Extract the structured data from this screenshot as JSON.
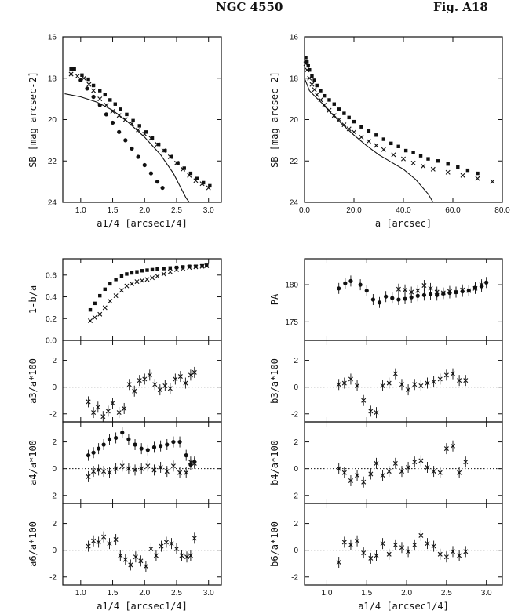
{
  "title": "NGC 4550",
  "figure_label": "Fig. A18",
  "chart_data": [
    {
      "id": "sb_vs_a14",
      "type": "scatter",
      "xlabel": "a1/4 [arcsec1/4]",
      "ylabel": "SB [mag arcsec-2]",
      "xlim": [
        0.72,
        3.2
      ],
      "ylim": [
        24,
        16
      ],
      "ytick_labels": [
        "16",
        "18",
        "20",
        "22",
        "24"
      ],
      "xtick_labels": [
        "1.0",
        "1.5",
        "2.0",
        "2.5",
        "3.0"
      ],
      "series": [
        {
          "marker": "square",
          "x": [
            0.85,
            0.9,
            1.02,
            1.12,
            1.2,
            1.3,
            1.38,
            1.46,
            1.54,
            1.62,
            1.72,
            1.82,
            1.92,
            2.02,
            2.12,
            2.22,
            2.32,
            2.42,
            2.52,
            2.62,
            2.72,
            2.82,
            2.92,
            3.02
          ],
          "y": [
            17.55,
            17.55,
            17.85,
            18.05,
            18.35,
            18.6,
            18.8,
            19.05,
            19.25,
            19.5,
            19.75,
            20.05,
            20.3,
            20.6,
            20.9,
            21.2,
            21.5,
            21.8,
            22.1,
            22.35,
            22.6,
            22.85,
            23.05,
            23.2
          ]
        },
        {
          "marker": "cross",
          "x": [
            0.85,
            0.95,
            1.05,
            1.13,
            1.2,
            1.3,
            1.4,
            1.5,
            1.6,
            1.7,
            1.8,
            1.9,
            2.0,
            2.1,
            2.2,
            2.3,
            2.4,
            2.5,
            2.6,
            2.7,
            2.8,
            2.9,
            3.0
          ],
          "y": [
            17.8,
            17.9,
            18.0,
            18.3,
            18.6,
            19.0,
            19.3,
            19.6,
            19.8,
            20.0,
            20.2,
            20.5,
            20.7,
            20.9,
            21.2,
            21.5,
            21.8,
            22.1,
            22.4,
            22.7,
            22.95,
            23.1,
            23.3
          ]
        },
        {
          "marker": "dot",
          "x": [
            1.0,
            1.1,
            1.2,
            1.3,
            1.4,
            1.5,
            1.6,
            1.7,
            1.8,
            1.9,
            2.0,
            2.1,
            2.2,
            2.28
          ],
          "y": [
            18.1,
            18.5,
            18.9,
            19.3,
            19.75,
            20.15,
            20.6,
            21.0,
            21.4,
            21.8,
            22.2,
            22.6,
            23.0,
            23.3
          ]
        }
      ],
      "model_line": {
        "x": [
          0.75,
          1.0,
          1.25,
          1.5,
          1.75,
          2.0,
          2.25,
          2.45,
          2.55,
          2.65,
          2.7
        ],
        "y": [
          18.75,
          18.9,
          19.15,
          19.55,
          20.15,
          20.85,
          21.7,
          22.6,
          23.2,
          23.8,
          24.0
        ]
      }
    },
    {
      "id": "sb_vs_a",
      "type": "scatter",
      "xlabel": "a [arcsec]",
      "ylabel": "SB [mag arcsec-2]",
      "xlim": [
        0,
        80
      ],
      "ylim": [
        24,
        16
      ],
      "ytick_labels": [
        "16",
        "18",
        "20",
        "22",
        "24"
      ],
      "xtick_labels": [
        "0.0",
        "20.0",
        "40.0",
        "60.0",
        "80.0"
      ],
      "series": [
        {
          "marker": "square",
          "x": [
            0.5,
            1,
            1.5,
            2,
            3,
            4,
            5,
            6.5,
            8,
            10,
            12,
            14,
            16,
            18,
            20,
            23,
            26,
            29,
            32,
            35,
            38,
            41,
            44,
            47,
            50,
            54,
            58,
            62,
            66,
            70
          ],
          "y": [
            17.0,
            17.2,
            17.4,
            17.6,
            17.9,
            18.1,
            18.35,
            18.6,
            18.85,
            19.05,
            19.25,
            19.5,
            19.7,
            19.9,
            20.1,
            20.35,
            20.55,
            20.75,
            20.95,
            21.15,
            21.3,
            21.5,
            21.6,
            21.75,
            21.9,
            22.0,
            22.15,
            22.3,
            22.45,
            22.6
          ]
        },
        {
          "marker": "cross",
          "x": [
            0.5,
            1,
            2,
            3,
            4,
            5,
            6.5,
            8,
            10,
            12,
            14,
            16,
            18,
            20,
            23,
            26,
            29,
            32,
            36,
            40,
            44,
            48,
            52,
            58,
            64,
            70,
            76
          ],
          "y": [
            17.3,
            17.6,
            18.0,
            18.3,
            18.55,
            18.8,
            19.05,
            19.3,
            19.55,
            19.8,
            20.0,
            20.25,
            20.45,
            20.6,
            20.85,
            21.05,
            21.25,
            21.45,
            21.7,
            21.9,
            22.1,
            22.25,
            22.4,
            22.55,
            22.7,
            22.85,
            23.0
          ]
        }
      ],
      "model_line": {
        "x": [
          0,
          1,
          2,
          4,
          7,
          10,
          15,
          20,
          25,
          30,
          35,
          40,
          45,
          50,
          52
        ],
        "y": [
          18.0,
          18.3,
          18.6,
          18.85,
          19.2,
          19.6,
          20.2,
          20.75,
          21.25,
          21.7,
          22.05,
          22.4,
          22.9,
          23.6,
          24.0
        ]
      }
    },
    {
      "id": "ellipticity",
      "type": "scatter",
      "xlabel": "",
      "ylabel": "1-b/a",
      "xlim": [
        0.72,
        3.2
      ],
      "ylim": [
        0.0,
        0.75
      ],
      "ytick_labels": [
        "0.0",
        "0.2",
        "0.4",
        "0.6"
      ],
      "series": [
        {
          "marker": "square",
          "x": [
            1.15,
            1.22,
            1.3,
            1.38,
            1.46,
            1.55,
            1.64,
            1.72,
            1.8,
            1.88,
            1.96,
            2.04,
            2.12,
            2.2,
            2.3,
            2.4,
            2.5,
            2.6,
            2.7,
            2.8,
            2.9,
            2.97
          ],
          "y": [
            0.28,
            0.34,
            0.41,
            0.47,
            0.52,
            0.56,
            0.59,
            0.61,
            0.62,
            0.63,
            0.64,
            0.645,
            0.65,
            0.655,
            0.66,
            0.665,
            0.67,
            0.675,
            0.68,
            0.68,
            0.685,
            0.69
          ]
        },
        {
          "marker": "cross",
          "x": [
            1.15,
            1.22,
            1.3,
            1.38,
            1.46,
            1.55,
            1.64,
            1.72,
            1.8,
            1.88,
            1.96,
            2.04,
            2.12,
            2.2,
            2.3,
            2.4,
            2.5,
            2.6,
            2.7,
            2.8,
            2.9,
            2.97
          ],
          "y": [
            0.18,
            0.21,
            0.24,
            0.3,
            0.36,
            0.41,
            0.46,
            0.5,
            0.52,
            0.54,
            0.55,
            0.56,
            0.575,
            0.59,
            0.61,
            0.63,
            0.65,
            0.66,
            0.67,
            0.675,
            0.68,
            0.685
          ]
        }
      ]
    },
    {
      "id": "pa",
      "type": "scatter",
      "xlabel": "",
      "ylabel": "PA",
      "xlim": [
        0.72,
        3.2
      ],
      "ylim": [
        172.5,
        183.5
      ],
      "ytick_labels": [
        "175",
        "180"
      ],
      "series": [
        {
          "marker": "dot",
          "x": [
            1.15,
            1.23,
            1.3,
            1.42,
            1.5,
            1.58,
            1.66,
            1.74,
            1.82,
            1.9,
            1.98,
            2.06,
            2.14,
            2.22,
            2.3,
            2.38,
            2.46,
            2.54,
            2.62,
            2.7,
            2.78,
            2.86,
            2.94,
            3.0
          ],
          "y": [
            179.5,
            180.2,
            180.5,
            180.0,
            179.2,
            178.0,
            177.6,
            178.4,
            178.2,
            178.0,
            178.1,
            178.3,
            178.5,
            178.6,
            178.7,
            178.6,
            178.8,
            178.9,
            179.0,
            179.1,
            179.2,
            179.6,
            179.8,
            180.3
          ]
        },
        {
          "marker": "cross",
          "x": [
            1.9,
            1.98,
            2.06,
            2.14,
            2.22,
            2.3,
            2.38,
            2.46,
            2.54,
            2.62,
            2.7,
            2.78,
            2.86,
            2.94
          ],
          "y": [
            179.4,
            179.3,
            179.0,
            179.2,
            179.9,
            179.5,
            179.0,
            178.9,
            179.1,
            179.0,
            179.3,
            179.2,
            179.5,
            180.0
          ]
        }
      ]
    },
    {
      "id": "a3",
      "type": "scatter",
      "ylabel": "a3/a*100",
      "xlim": [
        0.72,
        3.2
      ],
      "ylim": [
        -2.6,
        3.5
      ],
      "ytick_labels": [
        "-2",
        "0",
        "2"
      ],
      "series": [
        {
          "marker": "cross",
          "x": [
            1.12,
            1.2,
            1.27,
            1.35,
            1.43,
            1.5,
            1.6,
            1.68,
            1.76,
            1.84,
            1.92,
            2.0,
            2.08,
            2.16,
            2.24,
            2.32,
            2.4,
            2.48,
            2.56,
            2.64,
            2.72,
            2.78
          ],
          "y": [
            -1.1,
            -1.9,
            -1.5,
            -2.2,
            -1.8,
            -1.2,
            -1.9,
            -1.6,
            0.2,
            -0.3,
            0.5,
            0.6,
            0.9,
            0.2,
            -0.2,
            0.1,
            -0.1,
            0.6,
            0.8,
            0.3,
            0.9,
            1.1
          ]
        }
      ]
    },
    {
      "id": "b3",
      "type": "scatter",
      "ylabel": "b3/a*100",
      "xlim": [
        0.72,
        3.2
      ],
      "ylim": [
        -2.6,
        3.5
      ],
      "ytick_labels": [
        "-2",
        "0",
        "2"
      ],
      "series": [
        {
          "marker": "cross",
          "x": [
            1.15,
            1.22,
            1.3,
            1.38,
            1.46,
            1.55,
            1.62,
            1.7,
            1.78,
            1.86,
            1.94,
            2.02,
            2.1,
            2.18,
            2.26,
            2.34,
            2.42,
            2.5,
            2.58,
            2.66,
            2.74
          ],
          "y": [
            0.2,
            0.3,
            0.6,
            0.1,
            -1.0,
            -1.8,
            -1.9,
            0.1,
            0.3,
            1.0,
            0.2,
            -0.2,
            0.2,
            0.1,
            0.3,
            0.4,
            0.6,
            0.9,
            1.0,
            0.5,
            0.5
          ]
        }
      ]
    },
    {
      "id": "a4",
      "type": "scatter",
      "ylabel": "a4/a*100",
      "xlim": [
        0.72,
        3.2
      ],
      "ylim": [
        -2.6,
        3.5
      ],
      "ytick_labels": [
        "-2",
        "0",
        "2"
      ],
      "series": [
        {
          "marker": "dot",
          "x": [
            1.12,
            1.2,
            1.28,
            1.36,
            1.45,
            1.55,
            1.65,
            1.75,
            1.85,
            1.95,
            2.05,
            2.15,
            2.25,
            2.35,
            2.45,
            2.55,
            2.65,
            2.72,
            2.78
          ],
          "y": [
            1.0,
            1.2,
            1.5,
            1.8,
            2.2,
            2.3,
            2.7,
            2.2,
            1.8,
            1.5,
            1.4,
            1.6,
            1.7,
            1.8,
            2.0,
            2.0,
            1.0,
            0.3,
            0.5
          ]
        },
        {
          "marker": "cross",
          "x": [
            1.12,
            1.2,
            1.28,
            1.36,
            1.45,
            1.55,
            1.65,
            1.75,
            1.85,
            1.95,
            2.05,
            2.15,
            2.25,
            2.35,
            2.45,
            2.55,
            2.65,
            2.72,
            2.78
          ],
          "y": [
            -0.6,
            -0.2,
            -0.1,
            -0.2,
            -0.3,
            0.0,
            0.2,
            0.0,
            -0.1,
            0.0,
            0.2,
            -0.1,
            0.1,
            -0.2,
            0.2,
            -0.3,
            -0.3,
            0.5,
            0.4
          ]
        }
      ]
    },
    {
      "id": "b4",
      "type": "scatter",
      "ylabel": "b4/a*100",
      "xlim": [
        0.72,
        3.2
      ],
      "ylim": [
        -2.6,
        3.5
      ],
      "ytick_labels": [
        "-2",
        "0",
        "2"
      ],
      "series": [
        {
          "marker": "cross",
          "x": [
            1.15,
            1.22,
            1.3,
            1.38,
            1.46,
            1.55,
            1.62,
            1.7,
            1.78,
            1.86,
            1.94,
            2.02,
            2.1,
            2.18,
            2.26,
            2.34,
            2.42,
            2.5,
            2.58,
            2.66,
            2.74
          ],
          "y": [
            0.0,
            -0.3,
            -0.9,
            -0.5,
            -1.0,
            -0.4,
            0.4,
            -0.5,
            -0.2,
            0.4,
            -0.2,
            0.1,
            0.5,
            0.6,
            0.1,
            -0.2,
            -0.3,
            1.5,
            1.7,
            -0.3,
            0.5
          ]
        }
      ]
    },
    {
      "id": "a6",
      "type": "scatter",
      "ylabel": "a6/a*100",
      "xlabel": "a1/4 [arcsec1/4]",
      "xlim": [
        0.72,
        3.2
      ],
      "ylim": [
        -2.6,
        3.5
      ],
      "ytick_labels": [
        "-2",
        "0",
        "2"
      ],
      "xtick_labels": [
        "1.0",
        "1.5",
        "2.0",
        "2.5",
        "3.0"
      ],
      "series": [
        {
          "marker": "cross",
          "x": [
            1.12,
            1.2,
            1.28,
            1.36,
            1.45,
            1.55,
            1.62,
            1.7,
            1.78,
            1.86,
            1.94,
            2.02,
            2.1,
            2.18,
            2.26,
            2.34,
            2.42,
            2.5,
            2.58,
            2.66,
            2.72,
            2.78
          ],
          "y": [
            0.3,
            0.7,
            0.6,
            1.0,
            0.5,
            0.8,
            -0.4,
            -0.7,
            -1.1,
            -0.5,
            -0.8,
            -1.2,
            0.1,
            -0.4,
            0.3,
            0.6,
            0.5,
            0.1,
            -0.4,
            -0.5,
            -0.4,
            0.9
          ]
        }
      ]
    },
    {
      "id": "b6",
      "type": "scatter",
      "ylabel": "b6/a*100",
      "xlabel": "a1/4 [arcsec1/4]",
      "xlim": [
        0.72,
        3.2
      ],
      "ylim": [
        -2.6,
        3.5
      ],
      "ytick_labels": [
        "-2",
        "0",
        "2"
      ],
      "xtick_labels": [
        "1.0",
        "1.5",
        "2.0",
        "2.5",
        "3.0"
      ],
      "series": [
        {
          "marker": "cross",
          "x": [
            1.15,
            1.22,
            1.3,
            1.38,
            1.46,
            1.55,
            1.62,
            1.7,
            1.78,
            1.86,
            1.94,
            2.02,
            2.1,
            2.18,
            2.26,
            2.34,
            2.42,
            2.5,
            2.58,
            2.66,
            2.74
          ],
          "y": [
            -0.9,
            0.6,
            0.4,
            0.7,
            -0.2,
            -0.6,
            -0.4,
            0.5,
            -0.3,
            0.4,
            0.2,
            -0.1,
            0.4,
            1.1,
            0.5,
            0.3,
            -0.3,
            -0.5,
            -0.1,
            -0.4,
            -0.1
          ]
        }
      ]
    }
  ]
}
